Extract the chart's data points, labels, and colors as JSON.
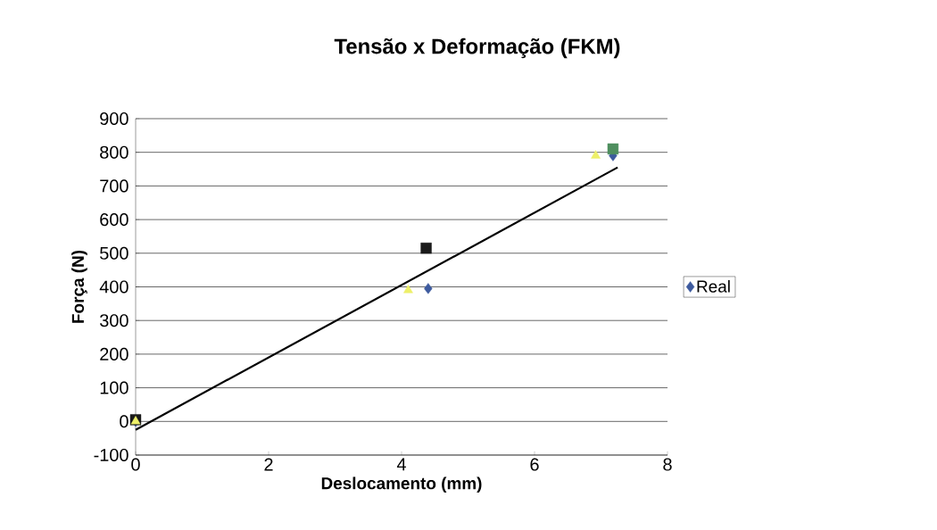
{
  "chart_data": {
    "type": "scatter",
    "title": "Tensão x Deformação (FKM)",
    "xlabel": "Deslocamento (mm)",
    "ylabel": "Força (N)",
    "xlim": [
      0,
      8
    ],
    "xticks": [
      0,
      2,
      4,
      6,
      8
    ],
    "ylim": [
      -100,
      900
    ],
    "yticks": [
      -100,
      0,
      100,
      200,
      300,
      400,
      500,
      600,
      700,
      800,
      900
    ],
    "grid": "y",
    "legend": "right",
    "series": [
      {
        "name": "Real",
        "color": "#3d5a9e",
        "marker": "diamond",
        "x": [
          0,
          4.4,
          7.18
        ],
        "values": [
          0,
          395,
          790
        ]
      },
      {
        "colors": [
          "#1a1a1a",
          "#1a1a1a",
          "#4f8f5f"
        ],
        "marker": "square",
        "x": [
          0,
          4.37,
          7.18
        ],
        "values": [
          5,
          515,
          810
        ]
      },
      {
        "color": "#eef06a",
        "marker": "triangle",
        "x": [
          0,
          4.1,
          6.92
        ],
        "values": [
          0,
          390,
          790
        ]
      },
      {
        "type": "line",
        "color": "#000000",
        "marker": "none",
        "x": [
          0,
          7.25
        ],
        "values": [
          -25,
          755
        ]
      }
    ]
  }
}
